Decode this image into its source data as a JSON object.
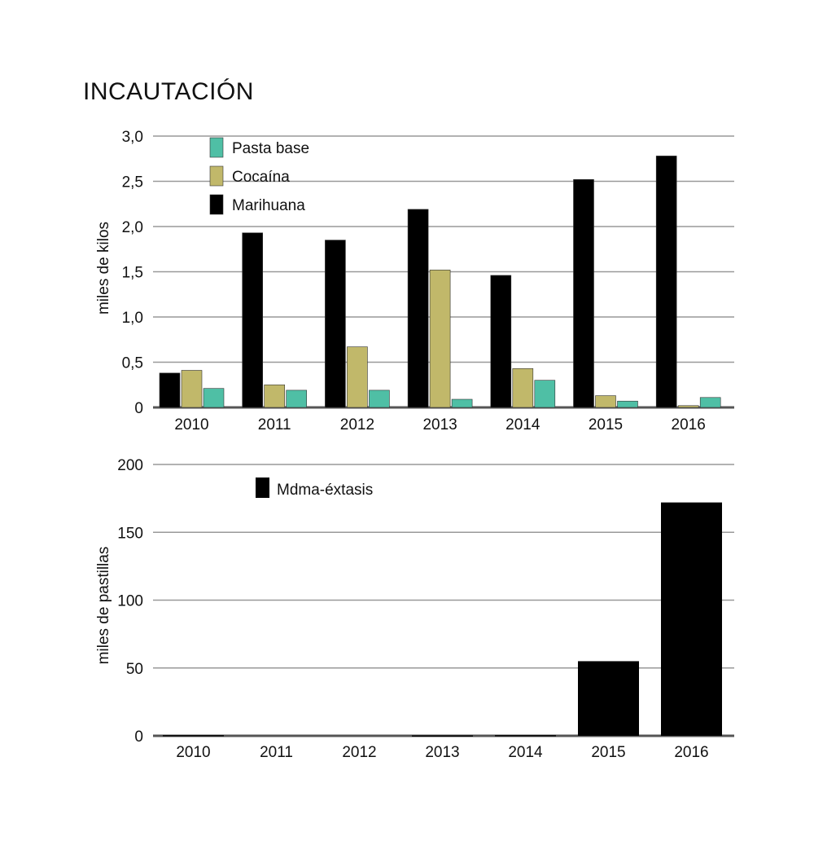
{
  "title": "INCAUTACIÓN",
  "colors": {
    "pasta_base": "#4fbfa5",
    "cocaina": "#c1b86a",
    "marihuana": "#000000",
    "mdma": "#000000"
  },
  "chart_data": [
    {
      "type": "bar",
      "categories": [
        "2010",
        "2011",
        "2012",
        "2013",
        "2014",
        "2015",
        "2016"
      ],
      "series": [
        {
          "name": "Marihuana",
          "key": "marihuana",
          "values": [
            0.38,
            1.93,
            1.85,
            2.19,
            1.46,
            2.52,
            2.78
          ]
        },
        {
          "name": "Cocaína",
          "key": "cocaina",
          "values": [
            0.41,
            0.25,
            0.67,
            1.52,
            0.43,
            0.13,
            0.02
          ]
        },
        {
          "name": "Pasta base",
          "key": "pasta_base",
          "values": [
            0.21,
            0.19,
            0.19,
            0.09,
            0.3,
            0.07,
            0.11
          ]
        }
      ],
      "legend": [
        "Pasta base",
        "Cocaína",
        "Marihuana"
      ],
      "ylabel": "miles de kilos",
      "xlabel": "",
      "ylim": [
        0,
        3.0
      ],
      "yticks": [
        "0",
        "0,5",
        "1,0",
        "1,5",
        "2,0",
        "2,5",
        "3,0"
      ],
      "grid": true,
      "legend_position": "top-left"
    },
    {
      "type": "bar",
      "categories": [
        "2010",
        "2011",
        "2012",
        "2013",
        "2014",
        "2015",
        "2016"
      ],
      "series": [
        {
          "name": "Mdma-éxtasis",
          "key": "mdma",
          "values": [
            0.5,
            0,
            0,
            0.3,
            0.5,
            55,
            172
          ]
        }
      ],
      "legend": [
        "Mdma-éxtasis"
      ],
      "ylabel": "miles de pastillas",
      "xlabel": "",
      "ylim": [
        0,
        200
      ],
      "yticks": [
        "0",
        "50",
        "100",
        "150",
        "200"
      ],
      "grid": true,
      "legend_position": "top-left"
    }
  ]
}
